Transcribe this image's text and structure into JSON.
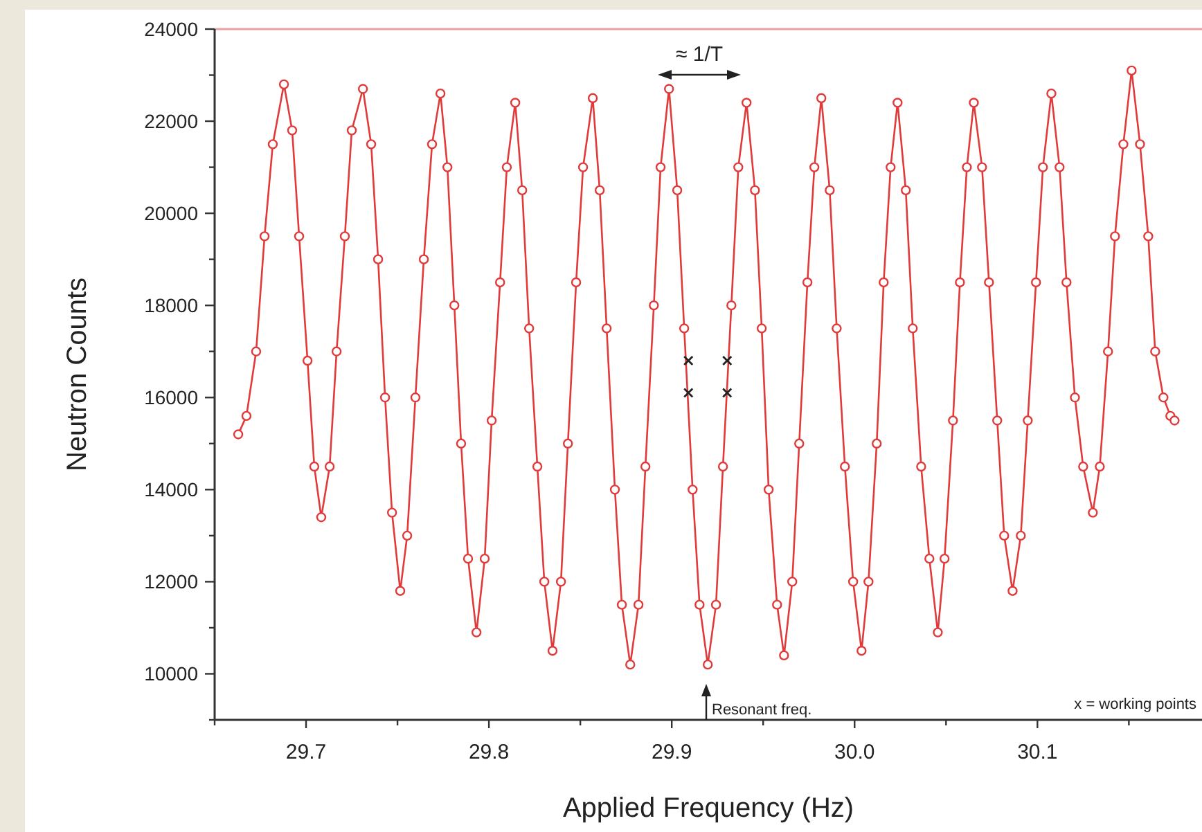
{
  "chart_data": {
    "type": "line",
    "xlabel": "Applied Frequency (Hz)",
    "ylabel": "Neutron Counts",
    "xlim": [
      29.65,
      30.19
    ],
    "xticks": [
      {
        "value": 29.65,
        "label": null
      },
      29.7,
      {
        "value": 29.75,
        "label": null
      },
      29.8,
      {
        "value": 29.85,
        "label": null
      },
      29.9,
      {
        "value": 29.95,
        "label": null
      },
      {
        "value": 30.0,
        "label": "30.0"
      },
      {
        "value": 30.05,
        "label": null
      },
      30.1,
      {
        "value": 30.15,
        "label": null
      }
    ],
    "ylim": [
      9000,
      24000
    ],
    "yticks": [
      {
        "value": 9000,
        "label": null
      },
      10000,
      {
        "value": 11000,
        "label": null
      },
      12000,
      {
        "value": 13000,
        "label": null
      },
      14000,
      {
        "value": 15000,
        "label": null
      },
      16000,
      {
        "value": 17000,
        "label": null
      },
      18000,
      {
        "value": 19000,
        "label": null
      },
      20000,
      {
        "value": 21000,
        "label": null
      },
      22000,
      {
        "value": 23000,
        "label": null
      },
      24000
    ],
    "grid": false,
    "series": [
      {
        "color": "#e03a3a",
        "marker": "circle",
        "line_style": "solid",
        "x": [
          29.6629,
          29.6674,
          29.6727,
          29.6773,
          29.6818,
          29.6879,
          29.6924,
          29.6962,
          29.7008,
          29.7045,
          29.7083,
          29.7129,
          29.7167,
          29.7212,
          29.725,
          29.7311,
          29.7356,
          29.7394,
          29.7432,
          29.747,
          29.7515,
          29.7553,
          29.7598,
          29.7644,
          29.7689,
          29.7735,
          29.7773,
          29.7811,
          29.7848,
          29.7886,
          29.7932,
          29.7977,
          29.8015,
          29.8061,
          29.8098,
          29.8144,
          29.8182,
          29.822,
          29.8265,
          29.8303,
          29.8348,
          29.8394,
          29.8432,
          29.8477,
          29.8515,
          29.8568,
          29.8606,
          29.8644,
          29.8689,
          29.8727,
          29.8773,
          29.8818,
          29.8856,
          29.8902,
          29.8939,
          29.8985,
          29.903,
          29.9068,
          29.9114,
          29.9152,
          29.9197,
          29.9242,
          29.928,
          29.9326,
          29.9364,
          29.9409,
          29.9455,
          29.9492,
          29.953,
          29.9576,
          29.9614,
          29.9659,
          29.9697,
          29.9742,
          29.978,
          29.9818,
          29.9864,
          29.9902,
          29.9947,
          29.9992,
          30.0038,
          30.0076,
          30.0121,
          30.0159,
          30.0197,
          30.0235,
          30.028,
          30.0318,
          30.0364,
          30.0409,
          30.0455,
          30.0492,
          30.0538,
          30.0576,
          30.0614,
          30.0652,
          30.0697,
          30.0735,
          30.078,
          30.0818,
          30.0864,
          30.0909,
          30.0947,
          30.0992,
          30.103,
          30.1076,
          30.1121,
          30.1159,
          30.1205,
          30.125,
          30.1303,
          30.1341,
          30.1386,
          30.1424,
          30.147,
          30.1515,
          30.1561,
          30.1606,
          30.1644,
          30.1689,
          30.1727,
          30.175
        ],
        "values": [
          15200,
          15600,
          17000,
          19500,
          21500,
          22800,
          21800,
          19500,
          16800,
          14500,
          13400,
          14500,
          17000,
          19500,
          21800,
          22700,
          21500,
          19000,
          16000,
          13500,
          11800,
          13000,
          16000,
          19000,
          21500,
          22600,
          21000,
          18000,
          15000,
          12500,
          10900,
          12500,
          15500,
          18500,
          21000,
          22400,
          20500,
          17500,
          14500,
          12000,
          10500,
          12000,
          15000,
          18500,
          21000,
          22500,
          20500,
          17500,
          14000,
          11500,
          10200,
          11500,
          14500,
          18000,
          21000,
          22700,
          20500,
          17500,
          14000,
          11500,
          10200,
          11500,
          14500,
          18000,
          21000,
          22400,
          20500,
          17500,
          14000,
          11500,
          10400,
          12000,
          15000,
          18500,
          21000,
          22500,
          20500,
          17500,
          14500,
          12000,
          10500,
          12000,
          15000,
          18500,
          21000,
          22400,
          20500,
          17500,
          14500,
          12500,
          10900,
          12500,
          15500,
          18500,
          21000,
          22400,
          21000,
          18500,
          15500,
          13000,
          11800,
          13000,
          15500,
          18500,
          21000,
          22600,
          21000,
          18500,
          16000,
          14500,
          13500,
          14500,
          17000,
          19500,
          21500,
          23100,
          21500,
          19500,
          17000,
          16000,
          15600,
          15500
        ]
      },
      {
        "type": "scatter",
        "color": "#222222",
        "marker": "cross",
        "x": [
          29.9091,
          29.9091,
          29.9303,
          29.9303
        ],
        "values": [
          16800,
          16100,
          16800,
          16100
        ]
      }
    ],
    "annotations": [
      "≈ 1/T",
      "Resonant freq.",
      "x = working points"
    ]
  }
}
